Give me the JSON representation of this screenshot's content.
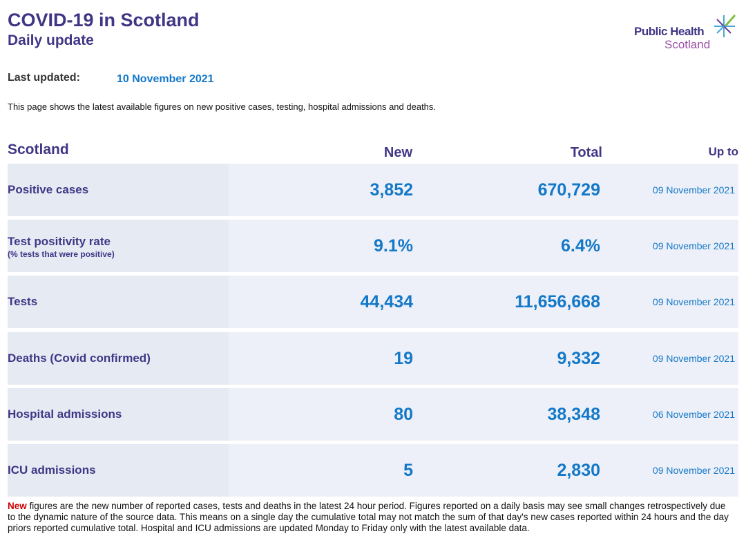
{
  "header": {
    "title": "COVID-19 in Scotland",
    "subtitle": "Daily update",
    "logo_line1": "Public Health",
    "logo_line2": "Scotland"
  },
  "last_updated": {
    "label": "Last updated:",
    "value": "10 November 2021"
  },
  "intro": "This page shows the latest available figures on new positive cases, testing, hospital admissions and deaths.",
  "table": {
    "headers": {
      "region": "Scotland",
      "new": "New",
      "total": "Total",
      "up_to": "Up to"
    },
    "rows": [
      {
        "name": "Positive cases",
        "new": "3,852",
        "total": "670,729",
        "up_to": "09 November 2021"
      },
      {
        "name": "Test positivity rate",
        "sub": "(% tests that were positive)",
        "new": "9.1%",
        "total": "6.4%",
        "up_to": "09 November 2021"
      },
      {
        "name": "Tests",
        "new": "44,434",
        "total": "11,656,668",
        "up_to": "09 November 2021"
      },
      {
        "name": "Deaths (Covid confirmed)",
        "new": "19",
        "total": "9,332",
        "up_to": "09 November 2021"
      },
      {
        "name": "Hospital admissions",
        "new": "80",
        "total": "38,348",
        "up_to": "06 November 2021"
      },
      {
        "name": "ICU admissions",
        "new": "5",
        "total": "2,830",
        "up_to": "09 November 2021"
      }
    ]
  },
  "footnote": {
    "highlight": "New",
    "text": " figures are the new number of reported cases, tests and deaths in the latest 24 hour period. Figures reported on a daily basis may see small changes retrospectively due to the dynamic nature of the source data. This means on a single day the cumulative total may not match the sum of that day's new cases reported within 24 hours and the day priors reported cumulative total. Hospital and ICU admissions are updated Monday to Friday only with the latest available data."
  }
}
